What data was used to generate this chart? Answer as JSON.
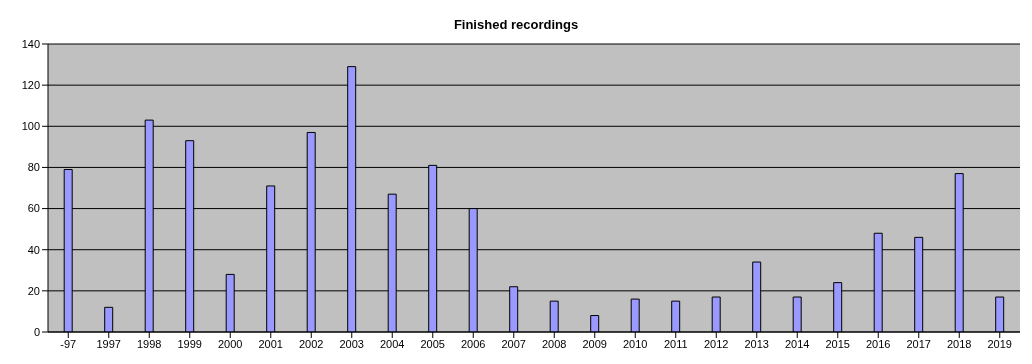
{
  "chart_data": {
    "type": "bar",
    "title": "Finished recordings",
    "categories": [
      "-97",
      "1997",
      "1998",
      "1999",
      "2000",
      "2001",
      "2002",
      "2003",
      "2004",
      "2005",
      "2006",
      "2007",
      "2008",
      "2009",
      "2010",
      "2011",
      "2012",
      "2013",
      "2014",
      "2015",
      "2016",
      "2017",
      "2018",
      "2019"
    ],
    "values": [
      79,
      12,
      103,
      93,
      28,
      71,
      97,
      129,
      67,
      81,
      60,
      22,
      15,
      8,
      16,
      15,
      17,
      34,
      17,
      24,
      48,
      46,
      77,
      17
    ],
    "color": "#9999ff",
    "ylim": [
      0,
      140
    ],
    "yticks": [
      0,
      20,
      40,
      60,
      80,
      100,
      120,
      140
    ],
    "grid": "y",
    "legend": false
  }
}
